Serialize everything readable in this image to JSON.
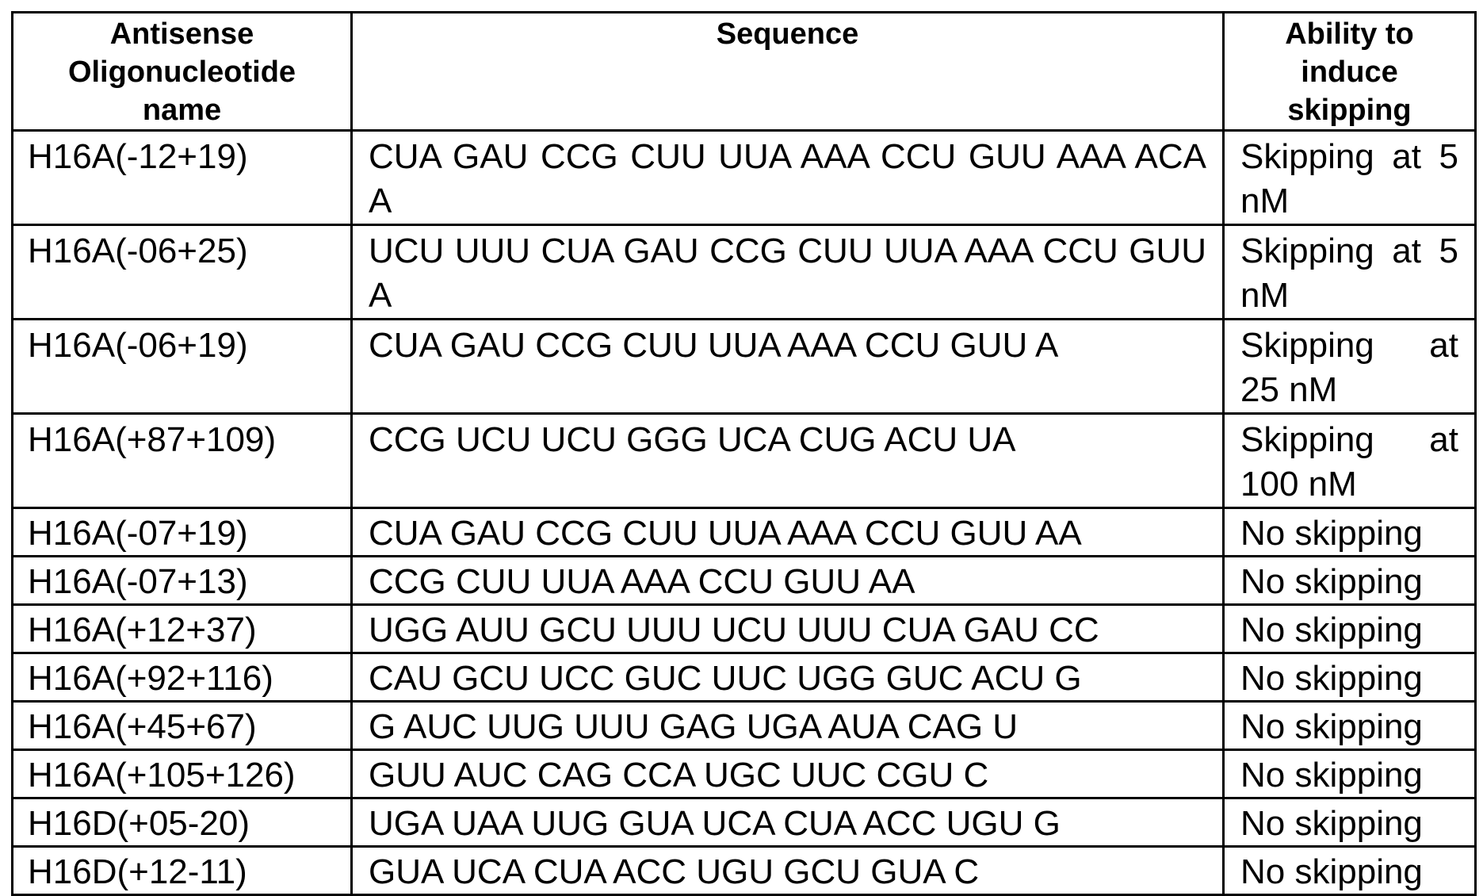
{
  "table": {
    "headers": [
      "Antisense Oligonucleotide name",
      "Sequence",
      "Ability to induce skipping"
    ],
    "rows": [
      {
        "name": "H16A(-12+19)",
        "sequence": "CUA GAU CCG CUU UUA AAA CCU GUU AAA ACA A",
        "ability": "Skipping at 5 nM"
      },
      {
        "name": "H16A(-06+25)",
        "sequence": "UCU UUU CUA GAU CCG CUU UUA AAA CCU GUU A",
        "ability": "Skipping at 5 nM"
      },
      {
        "name": "H16A(-06+19)",
        "sequence": "CUA GAU CCG CUU UUA AAA CCU GUU A",
        "ability": "Skipping at 25 nM"
      },
      {
        "name": "H16A(+87+109)",
        "sequence": "CCG UCU UCU GGG UCA CUG ACU UA",
        "ability": "Skipping at 100 nM"
      },
      {
        "name": "H16A(-07+19)",
        "sequence": "CUA GAU CCG CUU UUA AAA CCU GUU AA",
        "ability": "No skipping"
      },
      {
        "name": "H16A(-07+13)",
        "sequence": "CCG CUU UUA AAA CCU GUU AA",
        "ability": "No skipping"
      },
      {
        "name": "H16A(+12+37)",
        "sequence": "UGG AUU GCU UUU UCU UUU CUA GAU CC",
        "ability": "No skipping"
      },
      {
        "name": "H16A(+92+116)",
        "sequence": "CAU GCU UCC GUC UUC UGG GUC ACU G",
        "ability": "No skipping"
      },
      {
        "name": "H16A(+45+67)",
        "sequence": "G AUC UUG UUU GAG UGA AUA CAG U",
        "ability": "No skipping"
      },
      {
        "name": "H16A(+105+126)",
        "sequence": "GUU AUC CAG CCA UGC UUC CGU C",
        "ability": "No skipping"
      },
      {
        "name": "H16D(+05-20)",
        "sequence": "UGA UAA UUG GUA UCA CUA ACC UGU G",
        "ability": "No skipping"
      },
      {
        "name": "H16D(+12-11)",
        "sequence": "GUA UCA CUA ACC UGU GCU GUA C",
        "ability": "No skipping"
      }
    ]
  }
}
